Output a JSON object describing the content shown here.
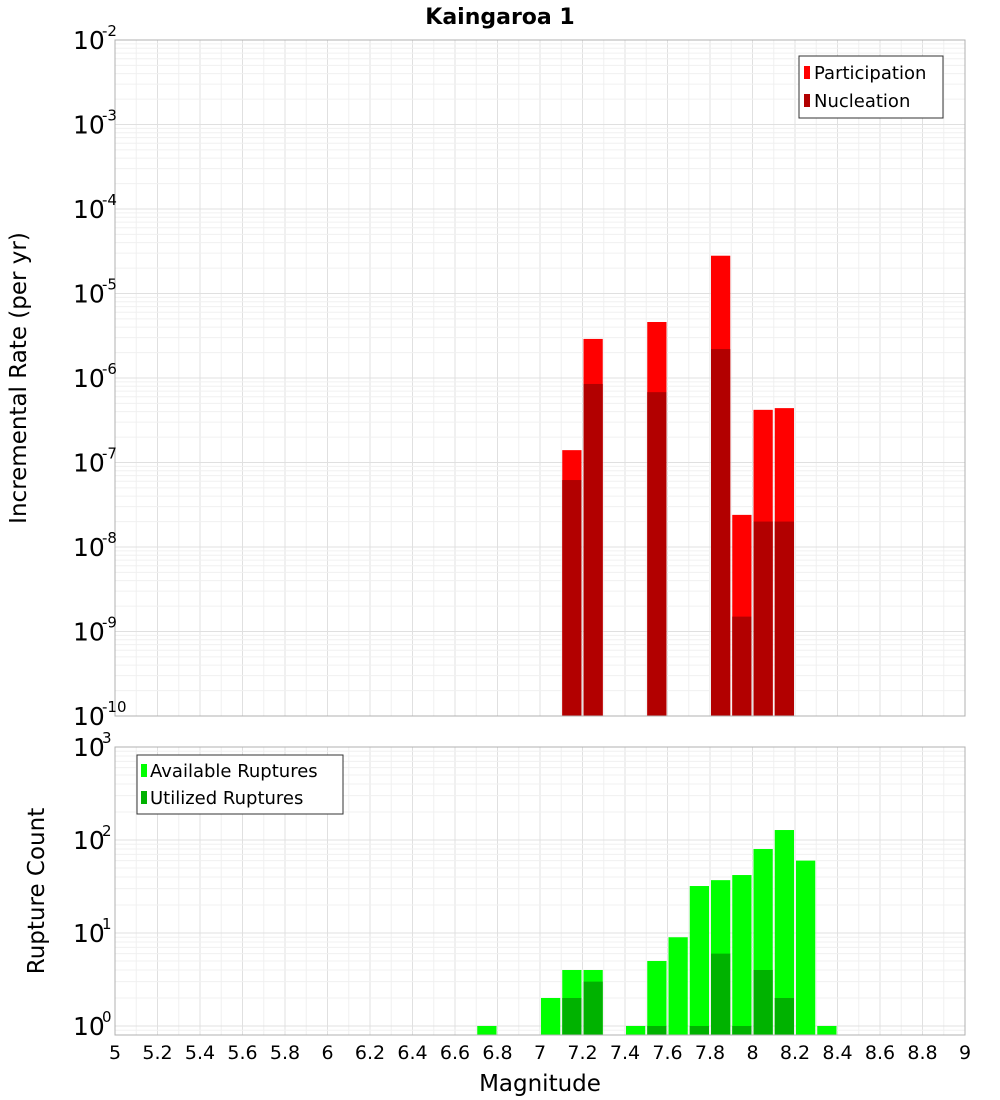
{
  "figure_title": "Kaingaroa 1",
  "colors": {
    "participation": "#ff0000",
    "nucleation": "#b20000",
    "available": "#00ff00",
    "utilized": "#00b200",
    "grid_major": "#e0e0e0",
    "grid_minor": "#f0f0f0",
    "frame": "#b0b0b0"
  },
  "chart_data": [
    {
      "type": "bar",
      "title": "Kaingaroa 1",
      "xlabel": "",
      "ylabel": "Incremental Rate (per yr)",
      "yscale": "log",
      "ylim": [
        1e-10,
        0.01
      ],
      "xlim": [
        5,
        9
      ],
      "bar_width": 0.1,
      "grid": true,
      "legend_position": "top-right",
      "y_tick_exponents": [
        -10,
        -9,
        -8,
        -7,
        -6,
        -5,
        -4,
        -3,
        -2
      ],
      "series": [
        {
          "name": "Participation",
          "x": [
            7.15,
            7.25,
            7.55,
            7.85,
            7.95,
            8.05,
            8.15
          ],
          "values": [
            1.4e-07,
            2.9e-06,
            4.6e-06,
            2.8e-05,
            2.4e-08,
            4.2e-07,
            4.4e-07
          ]
        },
        {
          "name": "Nucleation",
          "x": [
            7.15,
            7.25,
            7.55,
            7.85,
            7.95,
            8.05,
            8.15
          ],
          "values": [
            6.2e-08,
            8.5e-07,
            6.8e-07,
            2.2e-06,
            1.5e-09,
            2e-08,
            2e-08
          ]
        }
      ]
    },
    {
      "type": "bar",
      "title": "",
      "xlabel": "Magnitude",
      "ylabel": "Rupture Count",
      "yscale": "log",
      "ylim": [
        0.8,
        1000
      ],
      "xlim": [
        5,
        9
      ],
      "bar_width": 0.1,
      "grid": true,
      "legend_position": "top-left",
      "y_tick_exponents": [
        0,
        1,
        2,
        3
      ],
      "x_ticks": [
        "5",
        "5.2",
        "5.4",
        "5.6",
        "5.8",
        "6",
        "6.2",
        "6.4",
        "6.6",
        "6.8",
        "7",
        "7.2",
        "7.4",
        "7.6",
        "7.8",
        "8",
        "8.2",
        "8.4",
        "8.6",
        "8.8",
        "9"
      ],
      "series": [
        {
          "name": "Available Ruptures",
          "x": [
            6.75,
            7.05,
            7.15,
            7.25,
            7.45,
            7.55,
            7.65,
            7.75,
            7.85,
            7.95,
            8.05,
            8.15,
            8.25,
            8.35
          ],
          "values": [
            1,
            2,
            4,
            4,
            1,
            5,
            9,
            32,
            37,
            42,
            80,
            128,
            60,
            1
          ]
        },
        {
          "name": "Utilized Ruptures",
          "x": [
            7.15,
            7.25,
            7.55,
            7.75,
            7.85,
            7.95,
            8.05,
            8.15
          ],
          "values": [
            2,
            3,
            1,
            1,
            6,
            1,
            4,
            2
          ]
        }
      ]
    }
  ]
}
